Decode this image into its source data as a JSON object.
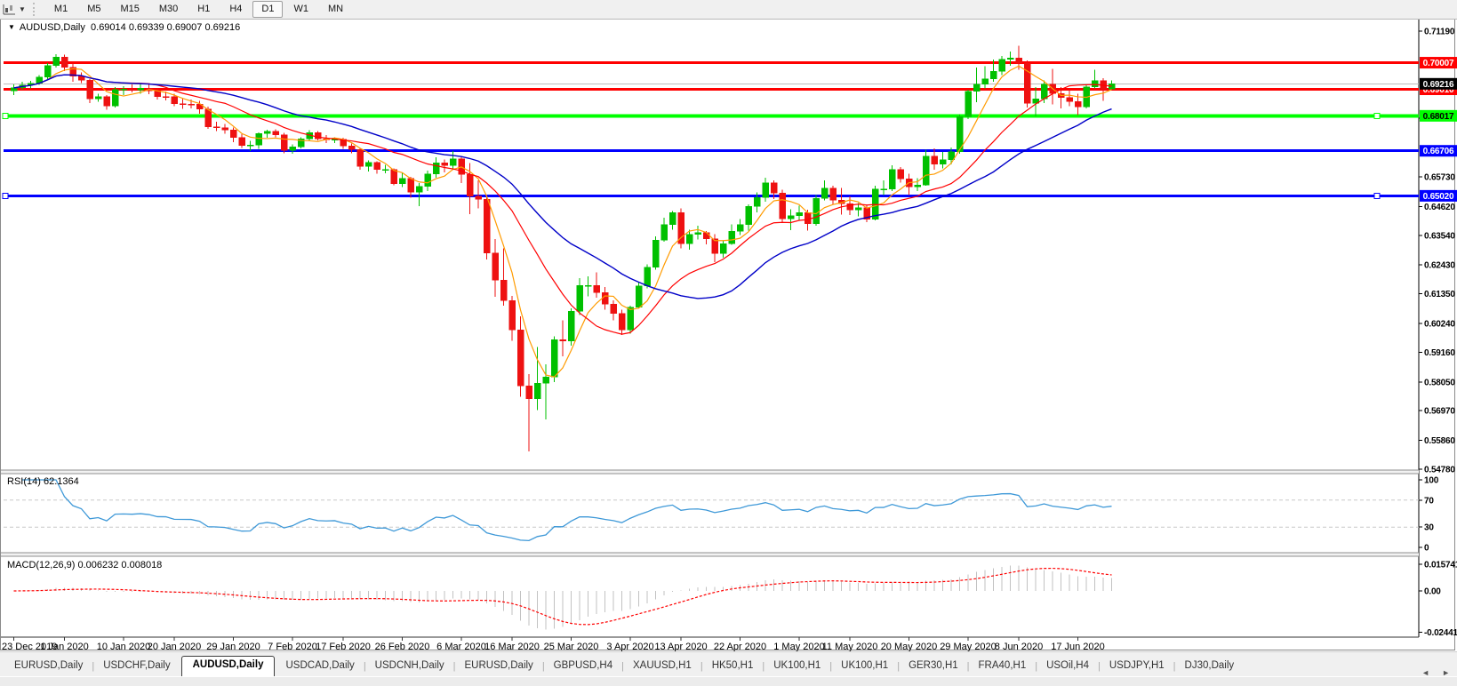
{
  "toolbar": {
    "timeframes": [
      "M1",
      "M5",
      "M15",
      "M30",
      "H1",
      "H4",
      "D1",
      "W1",
      "MN"
    ],
    "active_timeframe": "D1"
  },
  "chart": {
    "symbol_period": "AUDUSD,Daily",
    "ohlc_text": "0.69014 0.69339 0.69007 0.69216",
    "collapse_glyph": "▼"
  },
  "indicators": {
    "rsi": {
      "label": "RSI(14)",
      "value": "62.1364"
    },
    "macd": {
      "label": "MACD(12,26,9)",
      "value": "0.006232 0.008018"
    }
  },
  "tabs": {
    "items": [
      "EURUSD,Daily",
      "USDCHF,Daily",
      "AUDUSD,Daily",
      "USDCAD,Daily",
      "USDCNH,Daily",
      "EURUSD,Daily",
      "GBPUSD,H4",
      "XAUUSD,H1",
      "HK50,H1",
      "UK100,H1",
      "UK100,H1",
      "GER30,H1",
      "FRA40,H1",
      "USOil,H4",
      "USDJPY,H1",
      "DJ30,Daily"
    ],
    "active_index": 2,
    "scroll_left": "◄",
    "scroll_right": "►"
  },
  "chart_data": {
    "type": "candlestick",
    "title": "AUDUSD,Daily",
    "colors": {
      "up": "#00c000",
      "down": "#ee1111",
      "grid": "#c8c8c8",
      "axis": "#000000"
    },
    "y_ticks": [
      [
        "0.71190",
        0.7119
      ],
      [
        "0.67920",
        0.6792
      ],
      [
        "0.65730",
        0.6573
      ],
      [
        "0.64620",
        0.6462
      ],
      [
        "0.63540",
        0.6354
      ],
      [
        "0.62430",
        0.6243
      ],
      [
        "0.61350",
        0.6135
      ],
      [
        "0.60240",
        0.6024
      ],
      [
        "0.59160",
        0.5916
      ],
      [
        "0.58050",
        0.5805
      ],
      [
        "0.56970",
        0.5697
      ],
      [
        "0.55860",
        0.5586
      ],
      [
        "0.54780",
        0.5478
      ]
    ],
    "levels": [
      {
        "label": "0.70007",
        "value": 0.70007,
        "line": "#ff0000",
        "badge": "#ff0000",
        "text": "#ffffff",
        "w": 3,
        "handles": false
      },
      {
        "label": "0.69010",
        "value": 0.6901,
        "line": "#ff0000",
        "badge": "#ff0000",
        "text": "#ffffff",
        "w": 3,
        "handles": false
      },
      {
        "label": "0.68017",
        "value": 0.68017,
        "line": "#00ff00",
        "badge": "#00ff00",
        "text": "#000000",
        "w": 4,
        "handles": true
      },
      {
        "label": "0.66706",
        "value": 0.66706,
        "line": "#0000ff",
        "badge": "#0000ff",
        "text": "#ffffff",
        "w": 3,
        "handles": false
      },
      {
        "label": "0.65020",
        "value": 0.6502,
        "line": "#0000ff",
        "badge": "#0000ff",
        "text": "#ffffff",
        "w": 3,
        "handles": true
      }
    ],
    "current": {
      "label": "0.69216",
      "value": 0.69216,
      "line": "#bcbcbc",
      "badge": "#000000",
      "text": "#ffffff"
    },
    "x_labels": [
      [
        "23 Dec 2019",
        0
      ],
      [
        "1 Jan 2020",
        6
      ],
      [
        "10 Jan 2020",
        13
      ],
      [
        "20 Jan 2020",
        19
      ],
      [
        "29 Jan 2020",
        26
      ],
      [
        "7 Feb 2020",
        33
      ],
      [
        "17 Feb 2020",
        39
      ],
      [
        "26 Feb 2020",
        46
      ],
      [
        "6 Mar 2020",
        53
      ],
      [
        "16 Mar 2020",
        59
      ],
      [
        "25 Mar 2020",
        66
      ],
      [
        "3 Apr 2020",
        73
      ],
      [
        "13 Apr 2020",
        79
      ],
      [
        "22 Apr 2020",
        86
      ],
      [
        "1 May 2020",
        93
      ],
      [
        "11 May 2020",
        99
      ],
      [
        "20 May 2020",
        106
      ],
      [
        "29 May 2020",
        113
      ],
      [
        "8 Jun 2020",
        119
      ],
      [
        "17 Jun 2020",
        126
      ]
    ],
    "ma": [
      {
        "period": 5,
        "color": "#ff9b00",
        "w": 1.2
      },
      {
        "period": 14,
        "color": "#ff0000",
        "w": 1.2
      },
      {
        "period": 26,
        "color": "#0000c8",
        "w": 1.4
      }
    ],
    "rsi": {
      "period": 14,
      "color": "#3f99d8",
      "levels": [
        70,
        30
      ],
      "ticks": [
        [
          "100",
          100
        ],
        [
          "70",
          70
        ],
        [
          "30",
          30
        ],
        [
          "0",
          0
        ]
      ]
    },
    "macd": {
      "fast": 12,
      "slow": 26,
      "signal": 9,
      "hist_color": "#c2c2c2",
      "signal_color": "#ff0000",
      "ticks": [
        [
          "0.015741",
          0.015741
        ],
        [
          "0.00",
          0
        ],
        [
          "-0.024412",
          -0.024412
        ]
      ]
    },
    "candles": [
      [
        0.6895,
        0.692,
        0.688,
        0.6906
      ],
      [
        0.6906,
        0.693,
        0.6899,
        0.6917
      ],
      [
        0.6917,
        0.6933,
        0.6905,
        0.6924
      ],
      [
        0.6924,
        0.6955,
        0.6917,
        0.6946
      ],
      [
        0.6946,
        0.6999,
        0.694,
        0.699
      ],
      [
        0.699,
        0.7032,
        0.6982,
        0.7021
      ],
      [
        0.7021,
        0.703,
        0.697,
        0.6983
      ],
      [
        0.6983,
        0.7,
        0.693,
        0.695
      ],
      [
        0.695,
        0.6965,
        0.6924,
        0.6935
      ],
      [
        0.6935,
        0.694,
        0.685,
        0.6865
      ],
      [
        0.6865,
        0.6885,
        0.6855,
        0.6873
      ],
      [
        0.6873,
        0.688,
        0.6825,
        0.6839
      ],
      [
        0.6839,
        0.691,
        0.6832,
        0.69
      ],
      [
        0.69,
        0.6912,
        0.688,
        0.6902
      ],
      [
        0.6902,
        0.692,
        0.689,
        0.6899
      ],
      [
        0.6899,
        0.6925,
        0.6885,
        0.6905
      ],
      [
        0.6905,
        0.692,
        0.6883,
        0.6896
      ],
      [
        0.6896,
        0.6904,
        0.6862,
        0.6874
      ],
      [
        0.6874,
        0.6893,
        0.686,
        0.6873
      ],
      [
        0.6873,
        0.6884,
        0.6838,
        0.6847
      ],
      [
        0.6847,
        0.6868,
        0.6828,
        0.6846
      ],
      [
        0.6846,
        0.6863,
        0.683,
        0.6845
      ],
      [
        0.6845,
        0.6857,
        0.681,
        0.6827
      ],
      [
        0.6827,
        0.6836,
        0.6753,
        0.676
      ],
      [
        0.676,
        0.6779,
        0.6744,
        0.6757
      ],
      [
        0.6757,
        0.6772,
        0.6735,
        0.6749
      ],
      [
        0.6749,
        0.6758,
        0.6703,
        0.672
      ],
      [
        0.672,
        0.6733,
        0.6682,
        0.6691
      ],
      [
        0.6691,
        0.6708,
        0.667,
        0.6692
      ],
      [
        0.6692,
        0.674,
        0.6678,
        0.6735
      ],
      [
        0.6735,
        0.675,
        0.672,
        0.6744
      ],
      [
        0.6744,
        0.6752,
        0.6722,
        0.673
      ],
      [
        0.673,
        0.6738,
        0.6662,
        0.6672
      ],
      [
        0.6672,
        0.6695,
        0.666,
        0.6686
      ],
      [
        0.6686,
        0.6722,
        0.668,
        0.6715
      ],
      [
        0.6715,
        0.6748,
        0.6708,
        0.6738
      ],
      [
        0.6738,
        0.6745,
        0.671,
        0.6716
      ],
      [
        0.6716,
        0.673,
        0.67,
        0.6712
      ],
      [
        0.6712,
        0.6722,
        0.67,
        0.6714
      ],
      [
        0.6714,
        0.672,
        0.6678,
        0.6688
      ],
      [
        0.6688,
        0.6698,
        0.6662,
        0.6676
      ],
      [
        0.6676,
        0.668,
        0.66,
        0.6612
      ],
      [
        0.6612,
        0.6635,
        0.6593,
        0.6627
      ],
      [
        0.6627,
        0.6631,
        0.6585,
        0.66
      ],
      [
        0.66,
        0.6618,
        0.6586,
        0.6601
      ],
      [
        0.6601,
        0.6605,
        0.6542,
        0.6548
      ],
      [
        0.6548,
        0.659,
        0.6535,
        0.6568
      ],
      [
        0.6568,
        0.6573,
        0.6495,
        0.6515
      ],
      [
        0.6515,
        0.655,
        0.6464,
        0.6538
      ],
      [
        0.6538,
        0.6596,
        0.652,
        0.6584
      ],
      [
        0.6584,
        0.6646,
        0.657,
        0.6626
      ],
      [
        0.6626,
        0.6638,
        0.659,
        0.6616
      ],
      [
        0.6616,
        0.667,
        0.66,
        0.6641
      ],
      [
        0.6641,
        0.665,
        0.655,
        0.6583
      ],
      [
        0.6583,
        0.6625,
        0.6434,
        0.6501
      ],
      [
        0.6501,
        0.656,
        0.6455,
        0.6489
      ],
      [
        0.6489,
        0.6505,
        0.6264,
        0.6287
      ],
      [
        0.6287,
        0.634,
        0.6123,
        0.6187
      ],
      [
        0.6187,
        0.6305,
        0.609,
        0.611
      ],
      [
        0.611,
        0.6127,
        0.5959,
        0.5999
      ],
      [
        0.5999,
        0.605,
        0.575,
        0.579
      ],
      [
        0.579,
        0.5835,
        0.5545,
        0.5741
      ],
      [
        0.5741,
        0.5935,
        0.57,
        0.58
      ],
      [
        0.58,
        0.587,
        0.5665,
        0.5824
      ],
      [
        0.5824,
        0.5975,
        0.5805,
        0.5963
      ],
      [
        0.5963,
        0.6035,
        0.59,
        0.5958
      ],
      [
        0.5958,
        0.608,
        0.594,
        0.6069
      ],
      [
        0.6069,
        0.6193,
        0.6055,
        0.6166
      ],
      [
        0.6166,
        0.62,
        0.6125,
        0.6166
      ],
      [
        0.6166,
        0.6215,
        0.612,
        0.6139
      ],
      [
        0.6139,
        0.616,
        0.6075,
        0.6096
      ],
      [
        0.6096,
        0.611,
        0.6035,
        0.6061
      ],
      [
        0.6061,
        0.6075,
        0.598,
        0.5999
      ],
      [
        0.5999,
        0.609,
        0.5985,
        0.6085
      ],
      [
        0.6085,
        0.618,
        0.608,
        0.6164
      ],
      [
        0.6164,
        0.6245,
        0.6155,
        0.6234
      ],
      [
        0.6234,
        0.635,
        0.6225,
        0.6336
      ],
      [
        0.6336,
        0.642,
        0.633,
        0.6395
      ],
      [
        0.6395,
        0.6445,
        0.6375,
        0.6439
      ],
      [
        0.6439,
        0.6455,
        0.6305,
        0.6323
      ],
      [
        0.6323,
        0.6375,
        0.63,
        0.6357
      ],
      [
        0.6357,
        0.639,
        0.6338,
        0.6364
      ],
      [
        0.6364,
        0.637,
        0.632,
        0.6341
      ],
      [
        0.6341,
        0.6359,
        0.6253,
        0.6286
      ],
      [
        0.6286,
        0.6335,
        0.627,
        0.6323
      ],
      [
        0.6323,
        0.6395,
        0.6318,
        0.637
      ],
      [
        0.637,
        0.6415,
        0.6355,
        0.6395
      ],
      [
        0.6395,
        0.647,
        0.6372,
        0.6463
      ],
      [
        0.6463,
        0.6515,
        0.644,
        0.6495
      ],
      [
        0.6495,
        0.657,
        0.648,
        0.655
      ],
      [
        0.655,
        0.656,
        0.649,
        0.6513
      ],
      [
        0.6513,
        0.6525,
        0.6402,
        0.6416
      ],
      [
        0.6416,
        0.6452,
        0.6373,
        0.6428
      ],
      [
        0.6428,
        0.6465,
        0.641,
        0.6439
      ],
      [
        0.6439,
        0.645,
        0.6372,
        0.6398
      ],
      [
        0.6398,
        0.6505,
        0.639,
        0.6493
      ],
      [
        0.6493,
        0.656,
        0.6485,
        0.6531
      ],
      [
        0.6531,
        0.654,
        0.647,
        0.6486
      ],
      [
        0.6486,
        0.6532,
        0.6432,
        0.6473
      ],
      [
        0.6473,
        0.65,
        0.643,
        0.6449
      ],
      [
        0.6449,
        0.6475,
        0.6425,
        0.6458
      ],
      [
        0.6458,
        0.6468,
        0.6403,
        0.6414
      ],
      [
        0.6414,
        0.654,
        0.641,
        0.6527
      ],
      [
        0.6527,
        0.656,
        0.6505,
        0.6528
      ],
      [
        0.6528,
        0.6617,
        0.652,
        0.66
      ],
      [
        0.66,
        0.661,
        0.6552,
        0.6566
      ],
      [
        0.6566,
        0.6585,
        0.6505,
        0.6536
      ],
      [
        0.6536,
        0.6568,
        0.652,
        0.6543
      ],
      [
        0.6543,
        0.6675,
        0.654,
        0.6651
      ],
      [
        0.6651,
        0.668,
        0.66,
        0.6621
      ],
      [
        0.6621,
        0.6666,
        0.6605,
        0.6637
      ],
      [
        0.6637,
        0.6683,
        0.662,
        0.6667
      ],
      [
        0.6667,
        0.6808,
        0.666,
        0.6798
      ],
      [
        0.6798,
        0.6899,
        0.679,
        0.6893
      ],
      [
        0.6893,
        0.6983,
        0.6853,
        0.692
      ],
      [
        0.692,
        0.6988,
        0.6905,
        0.694
      ],
      [
        0.694,
        0.7013,
        0.693,
        0.6968
      ],
      [
        0.6968,
        0.7025,
        0.6955,
        0.7014
      ],
      [
        0.7014,
        0.7043,
        0.699,
        0.7019
      ],
      [
        0.7019,
        0.7064,
        0.6975,
        0.6999
      ],
      [
        0.6999,
        0.701,
        0.6832,
        0.6849
      ],
      [
        0.6849,
        0.691,
        0.68,
        0.6866
      ],
      [
        0.6866,
        0.6935,
        0.685,
        0.692
      ],
      [
        0.692,
        0.6977,
        0.6845,
        0.6885
      ],
      [
        0.6885,
        0.691,
        0.683,
        0.687
      ],
      [
        0.687,
        0.6905,
        0.6838,
        0.6855
      ],
      [
        0.6855,
        0.6885,
        0.6805,
        0.6835
      ],
      [
        0.6835,
        0.692,
        0.683,
        0.691
      ],
      [
        0.691,
        0.6975,
        0.6905,
        0.6933
      ],
      [
        0.6933,
        0.6942,
        0.6858,
        0.69
      ],
      [
        0.69014,
        0.69339,
        0.69007,
        0.69216
      ]
    ]
  }
}
